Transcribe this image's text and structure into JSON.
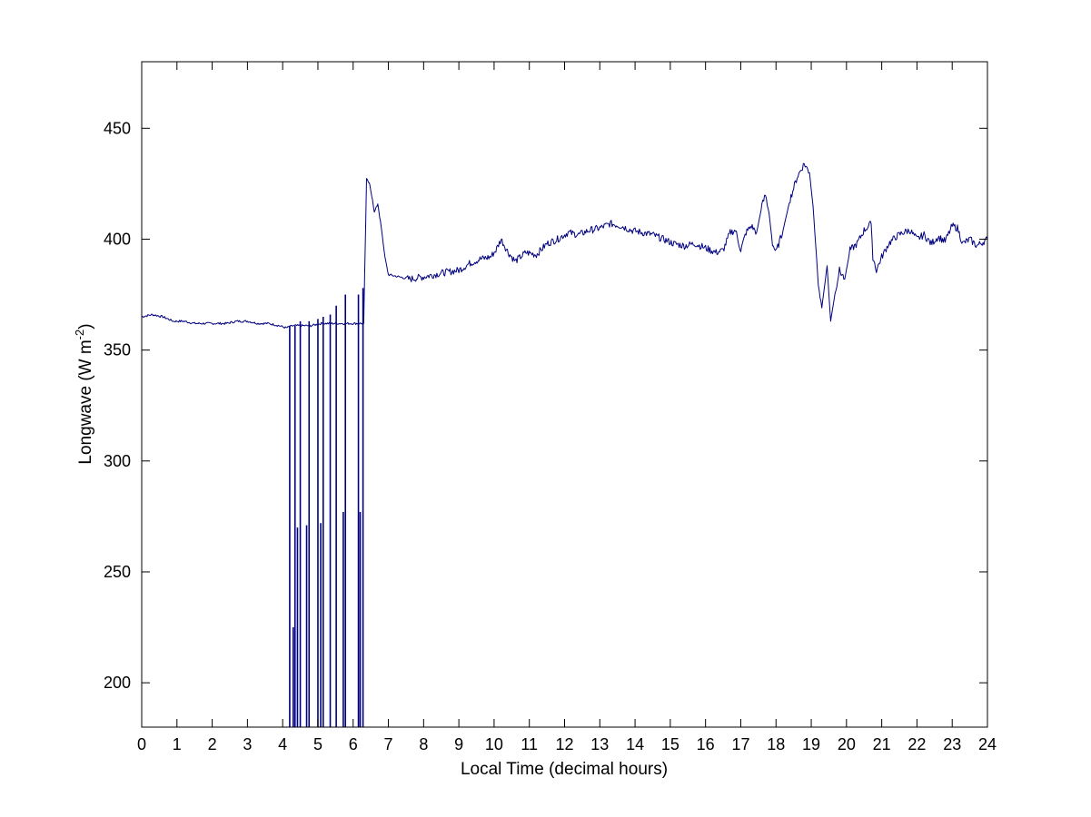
{
  "chart_data": {
    "type": "line",
    "title": "",
    "xlabel": "Local Time (decimal hours)",
    "ylabel_main": "Longwave (W m",
    "ylabel_sup": "-2",
    "ylabel_tail": ")",
    "xlim": [
      0,
      24
    ],
    "ylim": [
      180,
      480
    ],
    "xticks": [
      0,
      1,
      2,
      3,
      4,
      5,
      6,
      7,
      8,
      9,
      10,
      11,
      12,
      13,
      14,
      15,
      16,
      17,
      18,
      19,
      20,
      21,
      22,
      23,
      24
    ],
    "yticks": [
      200,
      250,
      300,
      350,
      400,
      450
    ],
    "grid": false,
    "legend": "none",
    "line_color": "#00007f",
    "series": [
      {
        "x": [
          0,
          0.3,
          0.6,
          0.9,
          1.2,
          1.5,
          1.8,
          2.1,
          2.4,
          2.7,
          3.0,
          3.3,
          3.6,
          3.9,
          4.1,
          4.3,
          4.5,
          4.8,
          5.1,
          5.4,
          5.7,
          6.0,
          6.15,
          6.3,
          6.38,
          6.46,
          6.55,
          6.6,
          6.7,
          6.8,
          6.9,
          7.0,
          7.3,
          7.6,
          8.0,
          8.3,
          8.6,
          9.0,
          9.3,
          9.6,
          9.9,
          10.05,
          10.2,
          10.4,
          10.6,
          10.9,
          11.2,
          11.5,
          11.8,
          12.1,
          12.4,
          12.7,
          13.0,
          13.3,
          13.6,
          13.9,
          14.2,
          14.5,
          14.8,
          15.1,
          15.4,
          15.7,
          16.0,
          16.3,
          16.5,
          16.7,
          16.85,
          17.0,
          17.15,
          17.3,
          17.45,
          17.6,
          17.7,
          17.8,
          17.9,
          18.0,
          18.2,
          18.4,
          18.6,
          18.8,
          18.95,
          19.05,
          19.2,
          19.3,
          19.45,
          19.55,
          19.7,
          19.8,
          19.95,
          20.1,
          20.3,
          20.5,
          20.7,
          20.75,
          20.85,
          21.0,
          21.2,
          21.4,
          21.6,
          21.8,
          22.0,
          22.2,
          22.4,
          22.6,
          22.8,
          23.0,
          23.15,
          23.3,
          23.5,
          23.7,
          23.9,
          24.0
        ],
        "y": [
          365,
          366,
          365,
          363,
          363,
          362,
          362,
          362,
          362,
          363,
          363,
          362,
          362,
          361,
          360,
          361,
          361,
          361,
          362,
          362,
          362,
          362,
          362,
          362,
          427,
          425,
          418,
          412,
          416,
          405,
          392,
          384,
          383,
          382,
          383,
          384,
          385,
          386,
          389,
          391,
          392,
          395,
          400,
          394,
          390,
          394,
          393,
          398,
          400,
          403,
          402,
          404,
          405,
          407,
          406,
          404,
          403,
          402,
          400,
          398,
          397,
          398,
          396,
          394,
          395,
          403,
          404,
          395,
          403,
          406,
          403,
          415,
          420,
          412,
          398,
          394,
          404,
          418,
          428,
          434,
          430,
          415,
          380,
          369,
          388,
          363,
          378,
          386,
          382,
          395,
          398,
          404,
          407,
          392,
          386,
          392,
          398,
          401,
          403,
          404,
          400,
          402,
          398,
          401,
          399,
          406,
          405,
          398,
          400,
          397,
          399,
          400
        ]
      }
    ],
    "dropouts": [
      {
        "x": 4.2,
        "y": 361
      },
      {
        "x": 4.3,
        "y": 225
      },
      {
        "x": 4.35,
        "y": 361
      },
      {
        "x": 4.42,
        "y": 270
      },
      {
        "x": 4.5,
        "y": 363
      },
      {
        "x": 4.68,
        "y": 271
      },
      {
        "x": 4.75,
        "y": 363
      },
      {
        "x": 5.0,
        "y": 364
      },
      {
        "x": 5.08,
        "y": 272
      },
      {
        "x": 5.15,
        "y": 365
      },
      {
        "x": 5.35,
        "y": 366
      },
      {
        "x": 5.52,
        "y": 370
      },
      {
        "x": 5.72,
        "y": 277
      },
      {
        "x": 5.78,
        "y": 375
      },
      {
        "x": 6.15,
        "y": 375
      },
      {
        "x": 6.2,
        "y": 277
      },
      {
        "x": 6.28,
        "y": 378
      }
    ]
  }
}
